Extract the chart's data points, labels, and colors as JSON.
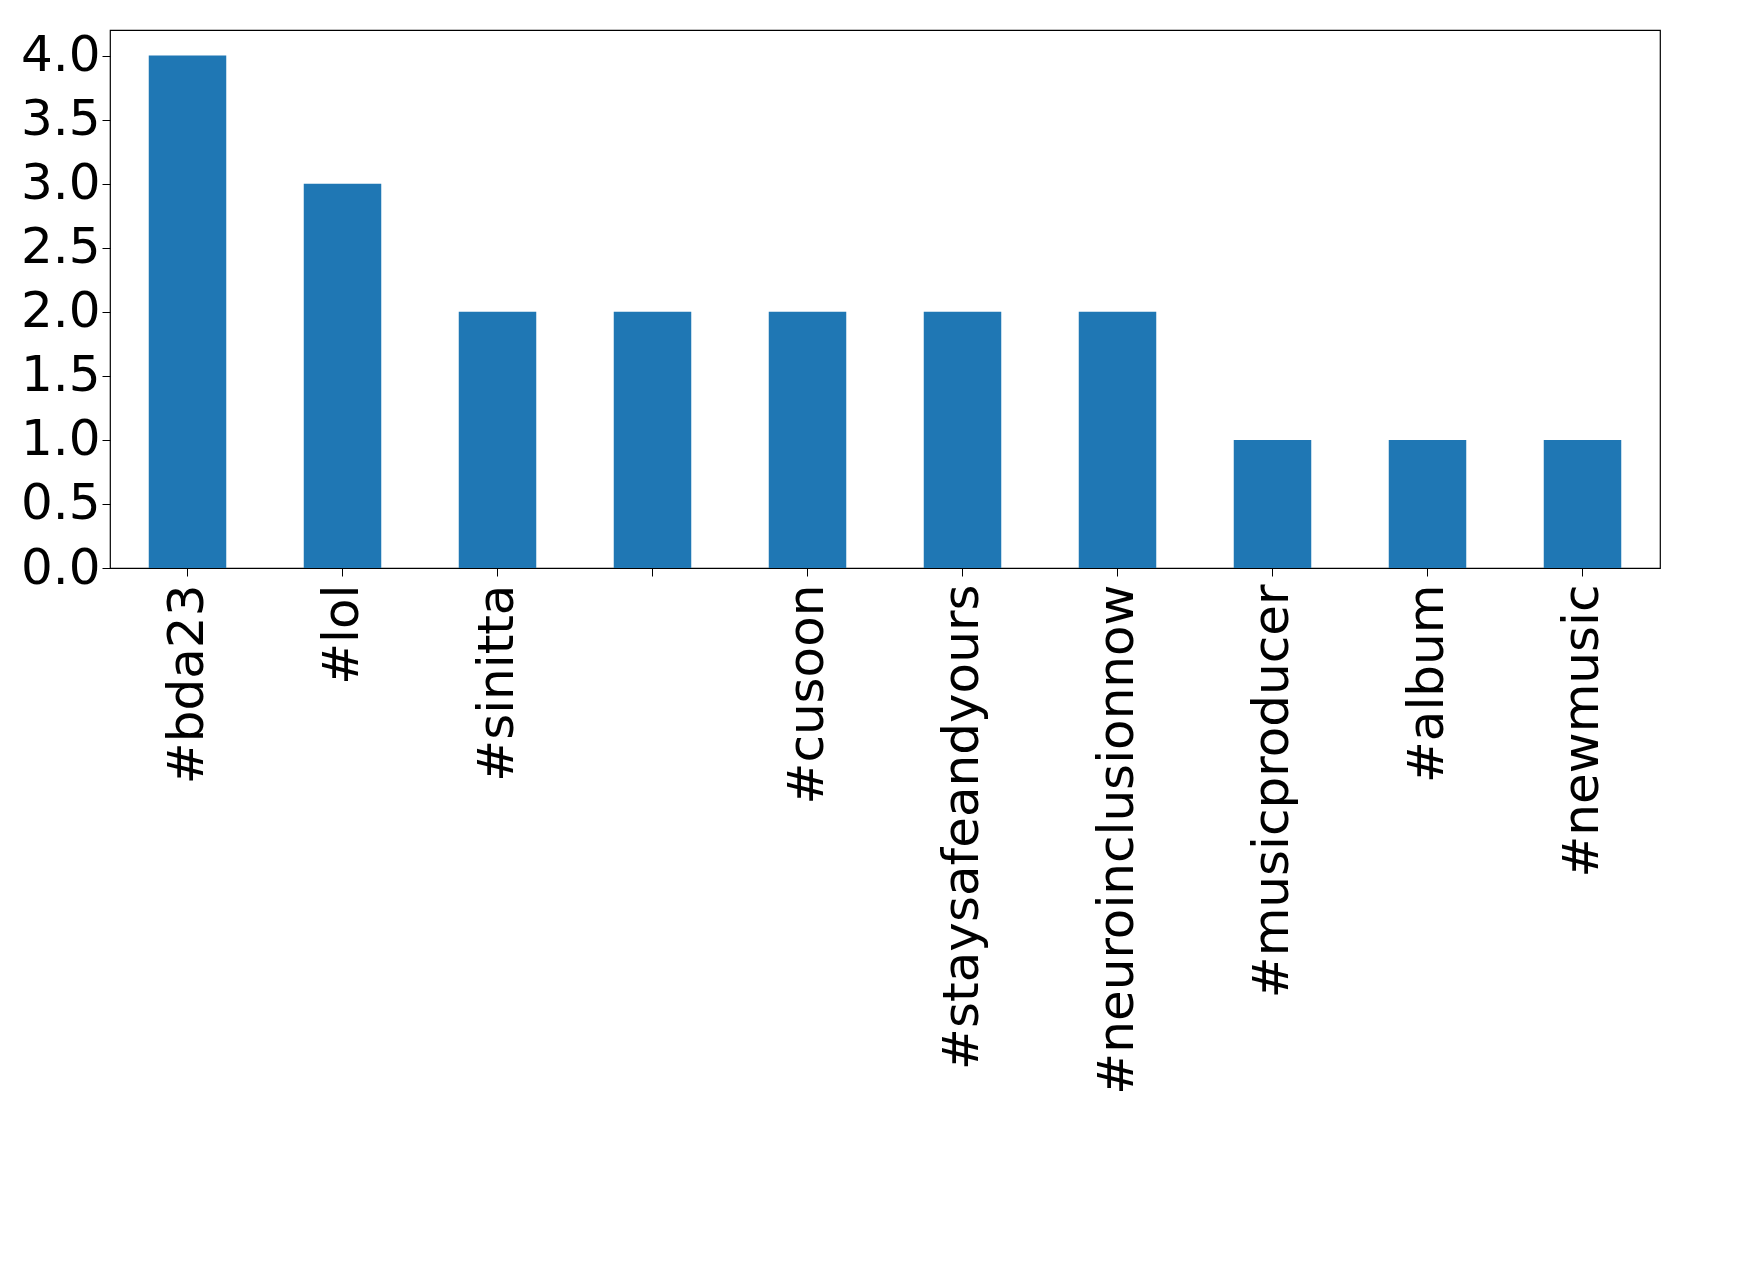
{
  "chart_data": {
    "type": "bar",
    "categories": [
      "#bda23",
      "#lol",
      "#sinitta",
      null,
      "#cusoon",
      "#staysafeandyours",
      "#neuroinclusionnow",
      "#musicproducer",
      "#album",
      "#newmusic"
    ],
    "values": [
      4,
      3,
      2,
      2,
      2,
      2,
      2,
      1,
      1,
      1
    ],
    "color": "#1f77b4",
    "ylim": [
      0,
      4.2
    ],
    "yticks": [
      {
        "value": 0,
        "label": "0.0"
      },
      {
        "value": 0.5,
        "label": "0.5"
      },
      {
        "value": 1,
        "label": "1.0"
      },
      {
        "value": 1.5,
        "label": "1.5"
      },
      {
        "value": 2,
        "label": "2.0"
      },
      {
        "value": 2.5,
        "label": "2.5"
      },
      {
        "value": 3,
        "label": "3.0"
      },
      {
        "value": 3.5,
        "label": "3.5"
      },
      {
        "value": 4,
        "label": "4.0"
      }
    ],
    "grid": false
  }
}
